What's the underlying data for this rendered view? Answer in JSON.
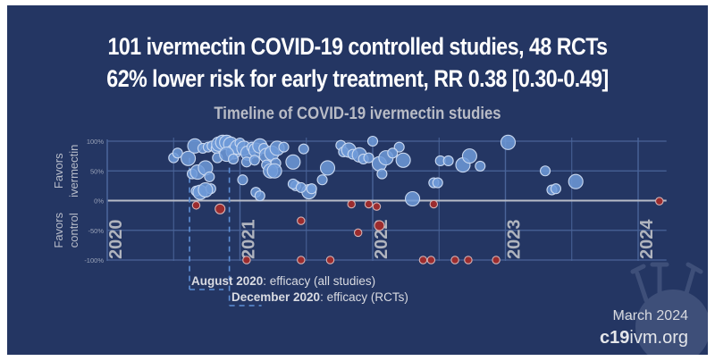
{
  "header": {
    "line1": "101 ivermectin COVID-19 controlled studies, 48 RCTs",
    "line2": "62% lower risk for early treatment, RR 0.38 [0.30-0.49]"
  },
  "footer": {
    "date": "March 2024",
    "site_bold": "c19",
    "site_rest": "ivm.org"
  },
  "colors": {
    "background": "#243663",
    "favors_ivermectin": "#6f9ad8",
    "favors_control": "#9b2c2e",
    "gridline": "#4a6499",
    "zero_line": "#b8bcc8",
    "year_label": "#b0b4be",
    "annotation_line": "#5d8fd6"
  },
  "chart_data": {
    "type": "scatter",
    "title": "Timeline of COVID-19 ivermectin studies",
    "xlabel": "",
    "ylabel_positive": [
      "Favors",
      "ivermectin"
    ],
    "ylabel_negative": [
      "Favors",
      "control"
    ],
    "xlim": [
      2020.0,
      2024.2
    ],
    "ylim": [
      -100,
      100
    ],
    "yticks": [
      100,
      50,
      0,
      -50,
      -100
    ],
    "ytick_labels": [
      "100%",
      "50%",
      "0%",
      "-50%",
      "-100%"
    ],
    "year_labels": [
      "2020",
      "2021",
      "2022",
      "2023",
      "2024"
    ],
    "year_positions": [
      2020.0,
      2021.0,
      2022.0,
      2023.0,
      2024.0
    ],
    "grid": true,
    "annotations": [
      {
        "date": 2020.62,
        "bold": "August 2020",
        "text": ": efficacy (all studies)"
      },
      {
        "date": 2020.92,
        "bold": "December 2020",
        "text": ": efficacy (RCTs)"
      }
    ],
    "series": [
      {
        "name": "Favors ivermectin",
        "points": [
          {
            "x": 2020.5,
            "y": 72,
            "size": 2
          },
          {
            "x": 2020.53,
            "y": 80,
            "size": 2
          },
          {
            "x": 2020.61,
            "y": 71,
            "size": 3
          },
          {
            "x": 2020.66,
            "y": 92,
            "size": 3
          },
          {
            "x": 2020.72,
            "y": 88,
            "size": 2
          },
          {
            "x": 2020.76,
            "y": 90,
            "size": 2
          },
          {
            "x": 2020.79,
            "y": 92,
            "size": 2
          },
          {
            "x": 2020.82,
            "y": 88,
            "size": 2
          },
          {
            "x": 2020.84,
            "y": 95,
            "size": 3
          },
          {
            "x": 2020.87,
            "y": 98,
            "size": 3
          },
          {
            "x": 2020.9,
            "y": 98,
            "size": 3
          },
          {
            "x": 2020.93,
            "y": 95,
            "size": 3
          },
          {
            "x": 2020.95,
            "y": 82,
            "size": 3
          },
          {
            "x": 2020.98,
            "y": 90,
            "size": 3
          },
          {
            "x": 2021.0,
            "y": 97,
            "size": 2
          },
          {
            "x": 2021.03,
            "y": 88,
            "size": 3
          },
          {
            "x": 2021.06,
            "y": 80,
            "size": 3
          },
          {
            "x": 2021.09,
            "y": 90,
            "size": 2
          },
          {
            "x": 2021.12,
            "y": 85,
            "size": 3
          },
          {
            "x": 2021.15,
            "y": 92,
            "size": 3
          },
          {
            "x": 2021.18,
            "y": 88,
            "size": 2
          },
          {
            "x": 2021.2,
            "y": 76,
            "size": 3
          },
          {
            "x": 2021.24,
            "y": 80,
            "size": 3
          },
          {
            "x": 2021.28,
            "y": 88,
            "size": 3
          },
          {
            "x": 2021.33,
            "y": 90,
            "size": 2
          },
          {
            "x": 2020.83,
            "y": 72,
            "size": 2
          },
          {
            "x": 2020.9,
            "y": 78,
            "size": 3
          },
          {
            "x": 2020.95,
            "y": 70,
            "size": 2
          },
          {
            "x": 2021.05,
            "y": 65,
            "size": 2
          },
          {
            "x": 2021.11,
            "y": 68,
            "size": 2
          },
          {
            "x": 2021.2,
            "y": 60,
            "size": 2
          },
          {
            "x": 2021.27,
            "y": 63,
            "size": 2
          },
          {
            "x": 2020.64,
            "y": 45,
            "size": 2
          },
          {
            "x": 2020.68,
            "y": 48,
            "size": 3
          },
          {
            "x": 2020.74,
            "y": 55,
            "size": 3
          },
          {
            "x": 2020.77,
            "y": 40,
            "size": 2
          },
          {
            "x": 2020.67,
            "y": 16,
            "size": 2
          },
          {
            "x": 2020.7,
            "y": 14,
            "size": 3
          },
          {
            "x": 2020.78,
            "y": 20,
            "size": 2
          },
          {
            "x": 2020.74,
            "y": 18,
            "size": 3
          },
          {
            "x": 2021.02,
            "y": 35,
            "size": 2
          },
          {
            "x": 2021.12,
            "y": 14,
            "size": 2
          },
          {
            "x": 2021.15,
            "y": 8,
            "size": 2
          },
          {
            "x": 2021.23,
            "y": 50,
            "size": 3
          },
          {
            "x": 2021.26,
            "y": 50,
            "size": 3
          },
          {
            "x": 2021.4,
            "y": 65,
            "size": 3
          },
          {
            "x": 2021.48,
            "y": 87,
            "size": 2
          },
          {
            "x": 2021.42,
            "y": 25,
            "size": 2
          },
          {
            "x": 2021.52,
            "y": 15,
            "size": 3
          },
          {
            "x": 2021.54,
            "y": 20,
            "size": 2
          },
          {
            "x": 2021.62,
            "y": 35,
            "size": 2
          },
          {
            "x": 2021.4,
            "y": 28,
            "size": 2
          },
          {
            "x": 2021.46,
            "y": 22,
            "size": 2
          },
          {
            "x": 2021.66,
            "y": 55,
            "size": 3
          },
          {
            "x": 2021.76,
            "y": 93,
            "size": 2
          },
          {
            "x": 2021.78,
            "y": 82,
            "size": 2
          },
          {
            "x": 2021.82,
            "y": 85,
            "size": 3
          },
          {
            "x": 2021.85,
            "y": 78,
            "size": 2
          },
          {
            "x": 2021.9,
            "y": 77,
            "size": 3
          },
          {
            "x": 2021.93,
            "y": 70,
            "size": 2
          },
          {
            "x": 2021.97,
            "y": 72,
            "size": 2
          },
          {
            "x": 2022.0,
            "y": 100,
            "size": 2
          },
          {
            "x": 2022.05,
            "y": 62,
            "size": 3
          },
          {
            "x": 2022.1,
            "y": 72,
            "size": 3
          },
          {
            "x": 2022.07,
            "y": 45,
            "size": 2
          },
          {
            "x": 2022.2,
            "y": 90,
            "size": 2
          },
          {
            "x": 2022.15,
            "y": 80,
            "size": 2
          },
          {
            "x": 2022.23,
            "y": 68,
            "size": 3
          },
          {
            "x": 2022.3,
            "y": 3,
            "size": 3
          },
          {
            "x": 2022.46,
            "y": 30,
            "size": 2
          },
          {
            "x": 2022.49,
            "y": 30,
            "size": 2
          },
          {
            "x": 2022.51,
            "y": 67,
            "size": 2
          },
          {
            "x": 2022.57,
            "y": 67,
            "size": 2
          },
          {
            "x": 2022.68,
            "y": 60,
            "size": 3
          },
          {
            "x": 2022.73,
            "y": 75,
            "size": 3
          },
          {
            "x": 2022.81,
            "y": 58,
            "size": 2
          },
          {
            "x": 2023.02,
            "y": 98,
            "size": 3
          },
          {
            "x": 2023.3,
            "y": 50,
            "size": 2
          },
          {
            "x": 2023.35,
            "y": 18,
            "size": 2
          },
          {
            "x": 2023.38,
            "y": 20,
            "size": 2
          },
          {
            "x": 2023.53,
            "y": 32,
            "size": 3
          }
        ]
      },
      {
        "name": "Favors control",
        "points": [
          {
            "x": 2020.67,
            "y": -8,
            "size": 1
          },
          {
            "x": 2020.85,
            "y": -14,
            "size": 2
          },
          {
            "x": 2021.05,
            "y": -100,
            "size": 1
          },
          {
            "x": 2021.46,
            "y": -34,
            "size": 1
          },
          {
            "x": 2021.46,
            "y": -100,
            "size": 1
          },
          {
            "x": 2021.68,
            "y": -100,
            "size": 1
          },
          {
            "x": 2021.84,
            "y": -6,
            "size": 1
          },
          {
            "x": 2021.89,
            "y": -54,
            "size": 1
          },
          {
            "x": 2021.97,
            "y": -6,
            "size": 1
          },
          {
            "x": 2022.03,
            "y": -10,
            "size": 1
          },
          {
            "x": 2022.05,
            "y": -42,
            "size": 2
          },
          {
            "x": 2022.46,
            "y": -6,
            "size": 1
          },
          {
            "x": 2022.38,
            "y": -100,
            "size": 1
          },
          {
            "x": 2022.44,
            "y": -100,
            "size": 1
          },
          {
            "x": 2022.62,
            "y": -100,
            "size": 1
          },
          {
            "x": 2022.72,
            "y": -100,
            "size": 1
          },
          {
            "x": 2022.93,
            "y": -100,
            "size": 1
          },
          {
            "x": 2024.16,
            "y": -1,
            "size": 1
          }
        ]
      }
    ]
  }
}
